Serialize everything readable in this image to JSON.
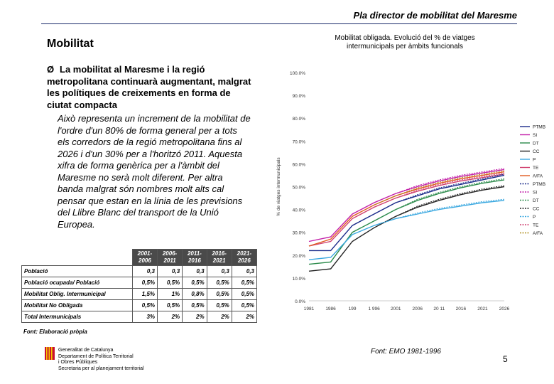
{
  "header": {
    "title": "Pla director de mobilitat del Maresme"
  },
  "section": {
    "title": "Mobilitat"
  },
  "bullet": {
    "arrow": "Ø",
    "text": "La mobilitat al Maresme i la regió metropolitana continuarà augmentant, malgrat les polítiques de creixements en forma de ciutat compacta"
  },
  "paragraph": "Això representa un increment de la mobilitat de l'ordre d'un 80% de forma general per a tots els corredors de la regió metropolitana fins al 2026 i d'un 30% per a l'horitzó 2011. Aquesta xifra de forma genèrica per a l'àmbit del Maresme no serà molt diferent. Per altra banda malgrat són nombres molt alts cal pensar que estan en la línia de les previsions del Llibre Blanc del transport de la Unió Europea.",
  "table": {
    "headers": [
      [
        "",
        ""
      ],
      [
        "2001-",
        "2006"
      ],
      [
        "2006-",
        "2011"
      ],
      [
        "2011-",
        "2016"
      ],
      [
        "2016-",
        "2021"
      ],
      [
        "2021-",
        "2026"
      ]
    ],
    "rows": [
      {
        "label": "Població",
        "values": [
          "0,3",
          "0,3",
          "0,3",
          "0,3",
          "0,3"
        ]
      },
      {
        "label": "Població ocupada/ Població",
        "values": [
          "0,5%",
          "0,5%",
          "0,5%",
          "0,5%",
          "0,5%"
        ]
      },
      {
        "label": "Mobilitat Oblig. Intermunicipal",
        "values": [
          "1,5%",
          "1%",
          "0,8%",
          "0,5%",
          "0,5%"
        ]
      },
      {
        "label": "Mobilitat No Obligada",
        "values": [
          "0,5%",
          "0,5%",
          "0,5%",
          "0,5%",
          "0,5%"
        ]
      },
      {
        "label": "Total Intermunicipals",
        "values": [
          "3%",
          "2%",
          "2%",
          "2%",
          "2%"
        ]
      }
    ],
    "source": "Font: Elaboració pròpia"
  },
  "footer_org": {
    "line1": "Generalitat de Catalunya",
    "line2": "Departament de Política Territorial",
    "line3": "i Obres Públiques",
    "line4": "Secretaria per al planejament territorial"
  },
  "chart_note": "Font: EMO 1981-1996",
  "page_number": "5",
  "chart_data": {
    "type": "line",
    "title": "Mobilitat obligada. Evolució del % de viatges intermunicipals per àmbits funcionals",
    "ylabel": "% de viatges intermunicipals",
    "xlabel": "",
    "x": [
      1981,
      1986,
      1991,
      1996,
      2001,
      2006,
      2011,
      2016,
      2021,
      2026
    ],
    "x_tick_labels": [
      "1981",
      "1986",
      "199",
      "1 996",
      "2001",
      "2006",
      "20 11",
      "2016",
      "2021",
      "2026"
    ],
    "y_tick_labels": [
      "0.0%",
      "10.0%",
      "20.0%",
      "30.0%",
      "40.0%",
      "50.0%",
      "60.0%",
      "70.0%",
      "80.0%",
      "90.0%",
      "100.0%"
    ],
    "ylim": [
      0,
      100
    ],
    "grid": false,
    "legend_position": "right",
    "series": [
      {
        "name": "PTMB",
        "color": "#1a2a8a",
        "dashed": false,
        "values": [
          22,
          22,
          33,
          38,
          43,
          46,
          49,
          51,
          53,
          55
        ]
      },
      {
        "name": "SI",
        "color": "#c21fa8",
        "dashed": false,
        "values": [
          26,
          28,
          38,
          43,
          47,
          50,
          52.5,
          54.5,
          56,
          57.5
        ]
      },
      {
        "name": "DT",
        "color": "#2a8a4a",
        "dashed": false,
        "values": [
          16,
          17,
          30,
          35,
          40,
          44,
          47,
          49.5,
          51.5,
          53
        ]
      },
      {
        "name": "CC",
        "color": "#222222",
        "dashed": false,
        "values": [
          13,
          14,
          26,
          32,
          37,
          41,
          44,
          46.5,
          48.5,
          50
        ]
      },
      {
        "name": "P",
        "color": "#3aa8e0",
        "dashed": false,
        "values": [
          18,
          19,
          29,
          33,
          36,
          38,
          40,
          41.5,
          43,
          44
        ]
      },
      {
        "name": "TE",
        "color": "#d04070",
        "dashed": false,
        "values": [
          24,
          26,
          36,
          41,
          45,
          48,
          50.5,
          52.5,
          54,
          55.5
        ]
      },
      {
        "name": "A/FA",
        "color": "#e05a20",
        "dashed": false,
        "values": [
          24,
          27,
          37,
          42,
          46,
          49,
          51.5,
          53.5,
          55,
          56.5
        ]
      },
      {
        "name": "PTMB",
        "color": "#1a2a8a",
        "dashed": true,
        "values": [
          null,
          null,
          null,
          38,
          43,
          46.5,
          49.5,
          51.5,
          53.5,
          55.5
        ]
      },
      {
        "name": "SI",
        "color": "#c21fa8",
        "dashed": true,
        "values": [
          null,
          null,
          null,
          43,
          47,
          50.5,
          53,
          55,
          56.5,
          58
        ]
      },
      {
        "name": "DT",
        "color": "#2a8a4a",
        "dashed": true,
        "values": [
          null,
          null,
          null,
          35,
          40,
          44.5,
          47.5,
          50,
          52,
          53.5
        ]
      },
      {
        "name": "CC",
        "color": "#222222",
        "dashed": true,
        "values": [
          null,
          null,
          null,
          32,
          37,
          41.5,
          44.5,
          47,
          49,
          50.5
        ]
      },
      {
        "name": "P",
        "color": "#3aa8e0",
        "dashed": true,
        "values": [
          null,
          null,
          null,
          33,
          36,
          38.5,
          40.5,
          42,
          43.5,
          44.5
        ]
      },
      {
        "name": "TE",
        "color": "#d04070",
        "dashed": true,
        "values": [
          null,
          null,
          null,
          41,
          45,
          48.5,
          51,
          53,
          54.5,
          56
        ]
      },
      {
        "name": "A/FA",
        "color": "#b09020",
        "dashed": true,
        "values": [
          null,
          null,
          null,
          42,
          46,
          49.5,
          52,
          54,
          55.5,
          57
        ]
      }
    ]
  }
}
